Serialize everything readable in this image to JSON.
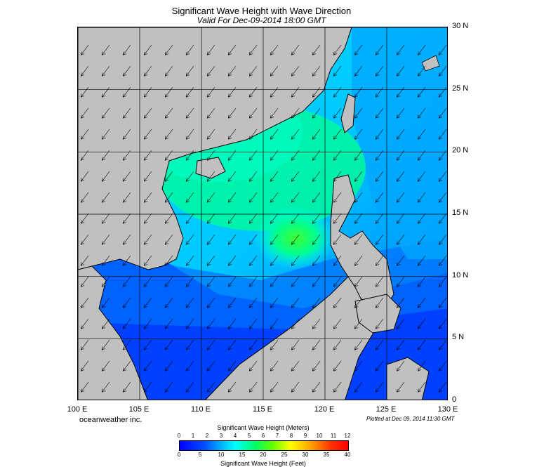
{
  "header": {
    "title": "Significant Wave Height with Wave Direction",
    "valid": "Valid For Dec-09-2014 18:00 GMT"
  },
  "axes": {
    "lat_labels": [
      "30 N",
      "25 N",
      "20 N",
      "15 N",
      "10 N",
      "5 N",
      "0"
    ],
    "lat_values": [
      30,
      25,
      20,
      15,
      10,
      5,
      0
    ],
    "lon_labels": [
      "100 E",
      "105 E",
      "110 E",
      "115 E",
      "120 E",
      "125 E",
      "130 E"
    ],
    "lon_values": [
      100,
      105,
      110,
      115,
      120,
      125,
      130
    ],
    "lat_range": [
      0,
      30
    ],
    "lon_range": [
      100,
      130
    ]
  },
  "footer": {
    "credit": "oceanweather inc.",
    "plotted": "Plotted at Dec 09, 2014 11:30 GMT"
  },
  "legend": {
    "meters_title": "Significant Wave Height (Meters)",
    "feet_title": "Significant Wave Height (Feet)",
    "meters_ticks": [
      "0",
      "1",
      "2",
      "3",
      "4",
      "5",
      "6",
      "7",
      "8",
      "9",
      "10",
      "11",
      "12"
    ],
    "feet_ticks": [
      "0",
      "5",
      "10",
      "15",
      "20",
      "25",
      "30",
      "35",
      "40"
    ]
  },
  "colors": {
    "land": "#c0c0c0",
    "low_wave": "#0000ff",
    "mid_wave": "#00ffff",
    "high_wave": "#00ff00"
  }
}
